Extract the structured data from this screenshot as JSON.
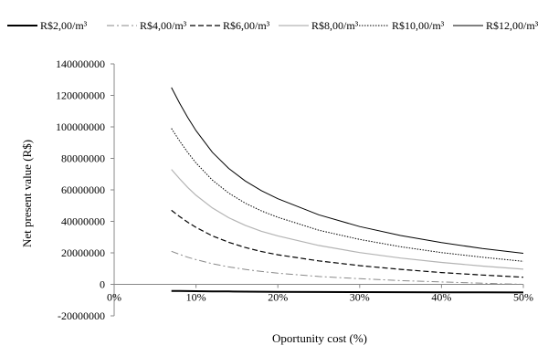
{
  "chart_data": {
    "type": "line",
    "title": "",
    "xlabel": "Oportunity cost (%)",
    "ylabel": "Net present value (R$)",
    "xlim": [
      0,
      50
    ],
    "ylim": [
      -20000000,
      140000000
    ],
    "x_ticks": [
      {
        "value": 0,
        "label": "0%"
      },
      {
        "value": 10,
        "label": "10%"
      },
      {
        "value": 20,
        "label": "20%"
      },
      {
        "value": 30,
        "label": "30%"
      },
      {
        "value": 40,
        "label": "40%"
      },
      {
        "value": 50,
        "label": "50%"
      }
    ],
    "y_ticks": [
      {
        "value": 140000000,
        "label": "140000000"
      },
      {
        "value": 120000000,
        "label": "120000000"
      },
      {
        "value": 100000000,
        "label": "100000000"
      },
      {
        "value": 80000000,
        "label": "80000000"
      },
      {
        "value": 60000000,
        "label": "60000000"
      },
      {
        "value": 40000000,
        "label": "40000000"
      },
      {
        "value": 20000000,
        "label": "20000000"
      },
      {
        "value": 0,
        "label": "0"
      },
      {
        "value": -20000000,
        "label": "-20000000"
      }
    ],
    "grid": false,
    "legend_position": "top",
    "x": [
      7,
      8,
      9,
      10,
      12,
      14,
      16,
      18,
      20,
      25,
      30,
      35,
      40,
      45,
      50
    ],
    "series": [
      {
        "name": "R$2,00/m³",
        "color": "#000000",
        "dash": "solid",
        "width": 2,
        "values": [
          -4200000,
          -4250000,
          -4300000,
          -4350000,
          -4450000,
          -4550000,
          -4650000,
          -4700000,
          -4750000,
          -4850000,
          -4950000,
          -5000000,
          -5050000,
          -5100000,
          -5150000
        ]
      },
      {
        "name": "R$4,00/m³",
        "color": "#8a8a8a",
        "dash": "dashdot",
        "width": 1,
        "values": [
          21000000,
          19000000,
          17200000,
          15700000,
          13100000,
          11100000,
          9500000,
          8200000,
          7100000,
          5000000,
          3600000,
          2400000,
          1500000,
          700000,
          0
        ]
      },
      {
        "name": "R$6,00/m³",
        "color": "#000000",
        "dash": "dashed",
        "width": 1.2,
        "values": [
          47000000,
          43000000,
          39400000,
          36200000,
          30800000,
          26700000,
          23400000,
          20800000,
          18800000,
          14900000,
          11900000,
          9500000,
          7500000,
          5900000,
          4500000
        ]
      },
      {
        "name": "R$8,00/m³",
        "color": "#b4b4b4",
        "dash": "solid",
        "width": 1.2,
        "values": [
          73000000,
          67000000,
          61500000,
          56600000,
          48500000,
          42300000,
          37500000,
          33700000,
          30800000,
          24700000,
          20200000,
          16700000,
          13900000,
          11600000,
          9600000
        ]
      },
      {
        "name": "R$10,00/m³",
        "color": "#000000",
        "dash": "dotted",
        "width": 1,
        "values": [
          99000000,
          91000000,
          83700000,
          77100000,
          66200000,
          58000000,
          51600000,
          46600000,
          42600000,
          34400000,
          28500000,
          23900000,
          20200000,
          17200000,
          14600000
        ]
      },
      {
        "name": "R$12,00/m³",
        "color": "#000000",
        "dash": "solid",
        "width": 1,
        "values": [
          125000000,
          115000000,
          105900000,
          97600000,
          83900000,
          73600000,
          65700000,
          59500000,
          54400000,
          44200000,
          36700000,
          31000000,
          26500000,
          22800000,
          19700000
        ]
      }
    ]
  }
}
